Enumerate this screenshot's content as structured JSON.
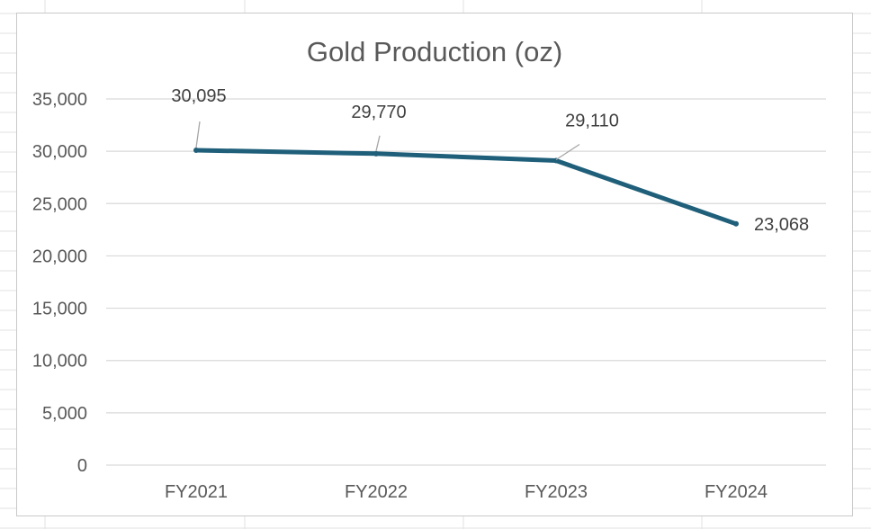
{
  "chart_data": {
    "type": "line",
    "title": "Gold Production (oz)",
    "categories": [
      "FY2021",
      "FY2022",
      "FY2023",
      "FY2024"
    ],
    "series": [
      {
        "name": "Gold Production (oz)",
        "values": [
          30095,
          29770,
          29110,
          23068
        ]
      }
    ],
    "data_labels": [
      "30,095",
      "29,770",
      "29,110",
      "23,068"
    ],
    "y_ticks": [
      0,
      5000,
      10000,
      15000,
      20000,
      25000,
      30000,
      35000
    ],
    "y_tick_labels": [
      "0",
      "5,000",
      "10,000",
      "15,000",
      "20,000",
      "25,000",
      "30,000",
      "35,000"
    ],
    "ylim": [
      0,
      35000
    ],
    "xlabel": "",
    "ylabel": "",
    "grid": true,
    "legend": "none",
    "colors": {
      "line": "#1f5f7a",
      "grid": "#d9d9d9",
      "leader": "#a6a6a6"
    }
  }
}
